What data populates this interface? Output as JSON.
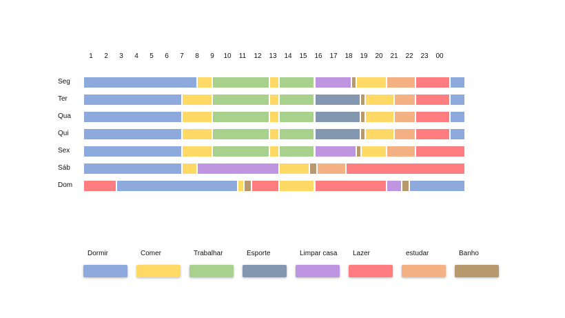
{
  "chart_data": {
    "type": "timeline",
    "title": "",
    "hour_labels": [
      "1",
      "2",
      "3",
      "4",
      "5",
      "6",
      "7",
      "8",
      "9",
      "10",
      "11",
      "12",
      "13",
      "14",
      "15",
      "16",
      "17",
      "18",
      "19",
      "20",
      "21",
      "22",
      "23",
      "00"
    ],
    "categories": [
      {
        "key": "dormir",
        "label": "Dormir",
        "color": "#8eaadc"
      },
      {
        "key": "comer",
        "label": "Comer",
        "color": "#ffd966"
      },
      {
        "key": "trabalhar",
        "label": "Trabalhar",
        "color": "#a9d18e"
      },
      {
        "key": "esporte",
        "label": "Esporte",
        "color": "#8497b0"
      },
      {
        "key": "limpar",
        "label": "Limpar casa",
        "color": "#bf94e0"
      },
      {
        "key": "lazer",
        "label": "Lazer",
        "color": "#ff7c80"
      },
      {
        "key": "estudar",
        "label": "estudar",
        "color": "#f4b183"
      },
      {
        "key": "banho",
        "label": "Banho",
        "color": "#b8996e"
      }
    ],
    "days": [
      {
        "label": "Seg",
        "blocks": [
          [
            "dormir",
            0,
            7.5
          ],
          [
            "comer",
            7.5,
            8.5
          ],
          [
            "trabalhar",
            8.5,
            12.25
          ],
          [
            "comer",
            12.25,
            12.9
          ],
          [
            "trabalhar",
            12.9,
            15.25
          ],
          [
            "limpar",
            15.25,
            17.7
          ],
          [
            "banho",
            17.7,
            18
          ],
          [
            "comer",
            18,
            20
          ],
          [
            "estudar",
            20,
            21.9
          ],
          [
            "lazer",
            21.9,
            24.2
          ],
          [
            "dormir",
            24.2,
            25.2
          ]
        ]
      },
      {
        "label": "Ter",
        "blocks": [
          [
            "dormir",
            0,
            6.5
          ],
          [
            "comer",
            6.5,
            8.5
          ],
          [
            "trabalhar",
            8.5,
            12.25
          ],
          [
            "comer",
            12.25,
            12.9
          ],
          [
            "trabalhar",
            12.9,
            15.25
          ],
          [
            "esporte",
            15.25,
            18.25
          ],
          [
            "banho",
            18.25,
            18.6
          ],
          [
            "comer",
            18.6,
            20.5
          ],
          [
            "estudar",
            20.5,
            21.9
          ],
          [
            "lazer",
            21.9,
            24.2
          ],
          [
            "dormir",
            24.2,
            25.2
          ]
        ]
      },
      {
        "label": "Qua",
        "blocks": [
          [
            "dormir",
            0,
            6.5
          ],
          [
            "comer",
            6.5,
            8.5
          ],
          [
            "trabalhar",
            8.5,
            12.25
          ],
          [
            "comer",
            12.25,
            12.9
          ],
          [
            "trabalhar",
            12.9,
            15.25
          ],
          [
            "esporte",
            15.25,
            18.25
          ],
          [
            "banho",
            18.25,
            18.6
          ],
          [
            "comer",
            18.6,
            20.5
          ],
          [
            "estudar",
            20.5,
            21.9
          ],
          [
            "lazer",
            21.9,
            24.2
          ],
          [
            "dormir",
            24.2,
            25.2
          ]
        ]
      },
      {
        "label": "Qui",
        "blocks": [
          [
            "dormir",
            0,
            6.5
          ],
          [
            "comer",
            6.5,
            8.5
          ],
          [
            "trabalhar",
            8.5,
            12.25
          ],
          [
            "comer",
            12.25,
            12.9
          ],
          [
            "trabalhar",
            12.9,
            15.25
          ],
          [
            "esporte",
            15.25,
            18.25
          ],
          [
            "banho",
            18.25,
            18.6
          ],
          [
            "comer",
            18.6,
            20.5
          ],
          [
            "estudar",
            20.5,
            21.9
          ],
          [
            "lazer",
            21.9,
            24.2
          ],
          [
            "dormir",
            24.2,
            25.2
          ]
        ]
      },
      {
        "label": "Sex",
        "blocks": [
          [
            "dormir",
            0,
            6.5
          ],
          [
            "comer",
            6.5,
            8.5
          ],
          [
            "trabalhar",
            8.5,
            12.25
          ],
          [
            "comer",
            12.25,
            12.9
          ],
          [
            "trabalhar",
            12.9,
            15.25
          ],
          [
            "limpar",
            15.25,
            18
          ],
          [
            "banho",
            18,
            18.3
          ],
          [
            "comer",
            18.3,
            20
          ],
          [
            "estudar",
            20,
            21.9
          ],
          [
            "lazer",
            21.9,
            25.2
          ]
        ]
      },
      {
        "label": "Sáb",
        "blocks": [
          [
            "dormir",
            0,
            6.5
          ],
          [
            "comer",
            6.5,
            7.5
          ],
          [
            "limpar",
            7.5,
            12.9
          ],
          [
            "comer",
            12.9,
            14.9
          ],
          [
            "banho",
            14.9,
            15.4
          ],
          [
            "estudar",
            15.4,
            17.3
          ],
          [
            "lazer",
            17.3,
            25.2
          ]
        ]
      },
      {
        "label": "Dom",
        "blocks": [
          [
            "lazer",
            0,
            2.2
          ],
          [
            "dormir",
            2.2,
            10.2
          ],
          [
            "comer",
            10.2,
            10.6
          ],
          [
            "banho",
            10.6,
            11.1
          ],
          [
            "lazer",
            11.1,
            12.9
          ],
          [
            "comer",
            12.9,
            15.25
          ],
          [
            "lazer",
            15.25,
            20
          ],
          [
            "limpar",
            20,
            21
          ],
          [
            "banho",
            21,
            21.5
          ],
          [
            "dormir",
            21.5,
            25.2
          ]
        ]
      }
    ]
  }
}
